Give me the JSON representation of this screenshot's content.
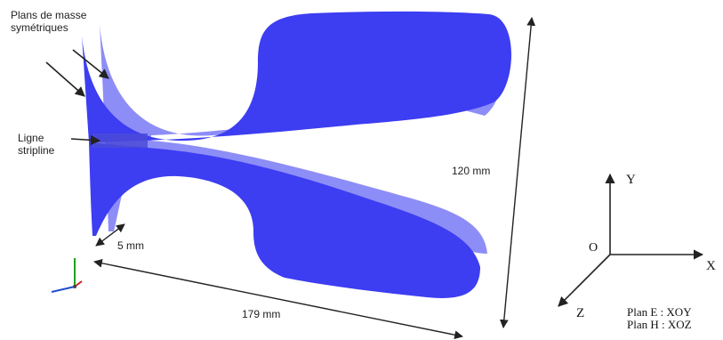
{
  "labels": {
    "ground_planes_line1": "Plans de masse",
    "ground_planes_line2": "symétriques",
    "stripline_line1": "Ligne",
    "stripline_line2": "stripline",
    "height_dim": "120 mm",
    "gap_dim": "5 mm",
    "length_dim": "179 mm"
  },
  "axes": {
    "origin": "O",
    "x": "X",
    "y": "Y",
    "z": "Z"
  },
  "planes": {
    "e_plane": "Plan E : XOY",
    "h_plane": "Plan H : XOZ"
  },
  "colors": {
    "front_fin": "#3c3cf0",
    "back_fin": "#7d7df5",
    "arrow": "#222222"
  }
}
